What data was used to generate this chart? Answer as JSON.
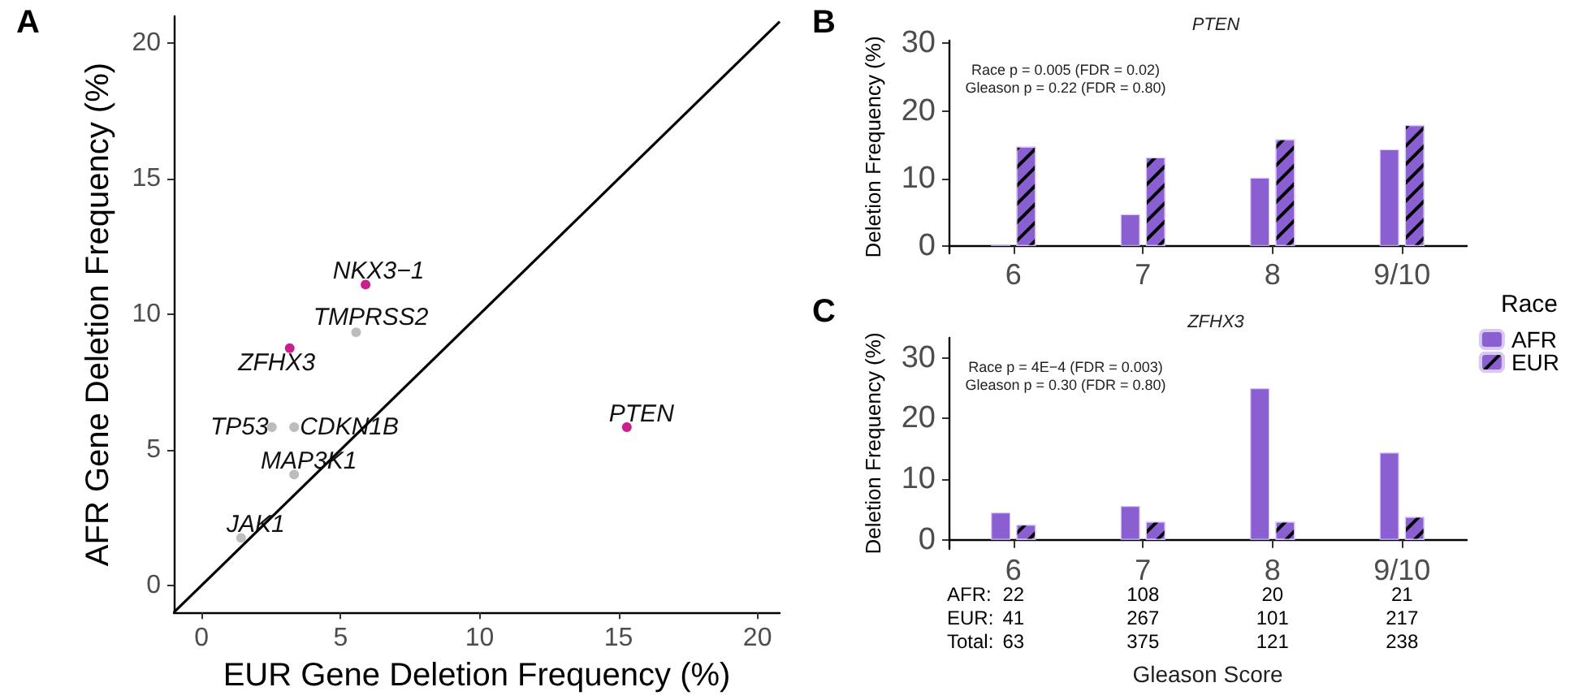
{
  "chart_data": [
    {
      "type": "scatter",
      "xlabel": "EUR Gene Deletion Frequency (%)",
      "ylabel": "AFR Gene Deletion Frequency (%)",
      "xlim": [
        -1,
        20.8
      ],
      "ylim": [
        -1,
        21
      ],
      "xticks": [
        0,
        5,
        10,
        15,
        20
      ],
      "yticks": [
        0,
        5,
        10,
        15,
        20
      ],
      "grid": false,
      "legend": false,
      "marker": "circle",
      "series": [
        {
          "color": "#cc1f8f",
          "x": [
            5.9,
            3.17,
            15.3
          ],
          "values": [
            11.1,
            8.75,
            5.84
          ]
        },
        {
          "color": "#bdbdbd",
          "x": [
            5.56,
            2.53,
            3.33,
            3.33,
            1.42
          ],
          "values": [
            9.34,
            5.84,
            5.84,
            4.09,
            1.75
          ]
        },
        {
          "type": "line",
          "marker": "none",
          "color": "#000000",
          "x": [
            -1,
            20.8
          ],
          "values": [
            -1,
            20.8
          ]
        }
      ],
      "annotations": [
        "A",
        {
          "text": "NKX3−1",
          "x": 5.9,
          "y": 11.1
        },
        {
          "text": "TMPRSS2",
          "x": 5.56,
          "y": 9.34
        },
        {
          "text": "ZFHX3",
          "x": 3.17,
          "y": 8.75
        },
        {
          "text": "TP53",
          "x": 2.53,
          "y": 5.84
        },
        {
          "text": "CDKN1B",
          "x": 3.33,
          "y": 5.84
        },
        {
          "text": "MAP3K1",
          "x": 3.33,
          "y": 4.09
        },
        {
          "text": "JAK1",
          "x": 1.42,
          "y": 1.75
        },
        {
          "text": "PTEN",
          "x": 15.3,
          "y": 5.84
        }
      ]
    },
    {
      "type": "bar",
      "title": "PTEN",
      "ylabel": "Deletion Frequency (%)",
      "categories": [
        "6",
        "7",
        "8",
        "9/10"
      ],
      "ylim": [
        -1.1,
        30.4
      ],
      "yticks": [
        0,
        10,
        20,
        30
      ],
      "grid": false,
      "legend": false,
      "series": [
        {
          "color": "#8a5fd1",
          "values": [
            0.2,
            4.7,
            10.1,
            14.3
          ]
        },
        {
          "color": "#8a5fd1",
          "values": [
            14.7,
            13.1,
            15.8,
            17.9
          ]
        }
      ],
      "annotations": [
        "B",
        "Race p = 0.005 (FDR = 0.02)",
        "Gleason p = 0.22 (FDR = 0.80)"
      ]
    },
    {
      "type": "bar",
      "title": "ZFHX3",
      "xlabel": "Gleason Score",
      "ylabel": "Deletion Frequency (%)",
      "categories": [
        "6",
        "7",
        "8",
        "9/10"
      ],
      "ylim": [
        -1.5,
        33.3
      ],
      "yticks": [
        0,
        10,
        20,
        30
      ],
      "grid": false,
      "legend": "right",
      "legend_title": "Race",
      "series": [
        {
          "name": "AFR",
          "color": "#8a5fd1",
          "values": [
            4.5,
            5.6,
            25.0,
            14.4
          ]
        },
        {
          "name": "EUR",
          "color": "#8a5fd1",
          "values": [
            2.5,
            3.0,
            3.0,
            3.8
          ]
        }
      ],
      "annotations": [
        "C",
        "Race p = 4E−4 (FDR = 0.003)",
        "Gleason p = 0.30 (FDR = 0.80)",
        "AFR:",
        "22",
        "108",
        "20",
        "21",
        "EUR:",
        "41",
        "267",
        "101",
        "217",
        "Total:",
        "63",
        "375",
        "121",
        "238"
      ]
    }
  ]
}
